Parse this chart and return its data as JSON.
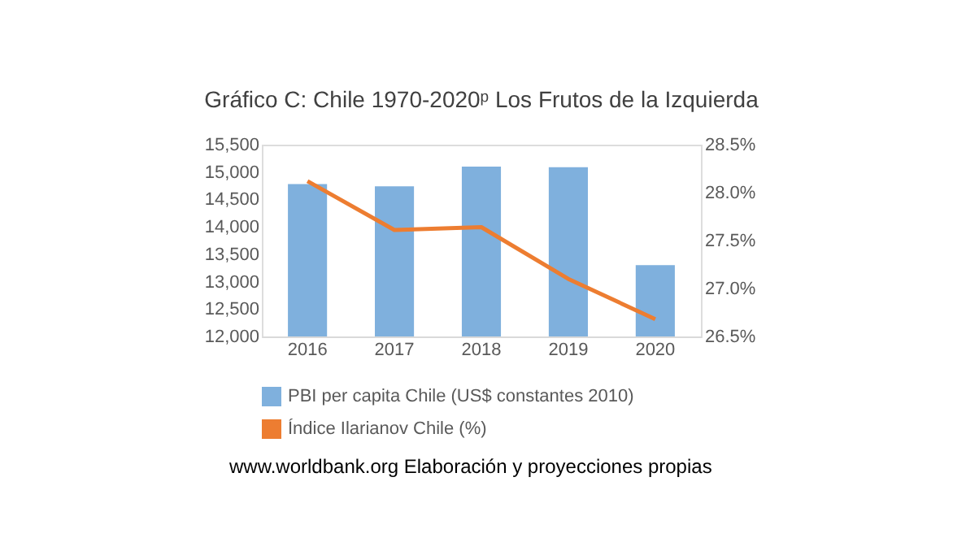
{
  "chart_data": {
    "type": "bar",
    "title": "Gráfico C: Chile 1970-2020ᵖ Los Frutos de la Izquierda",
    "categories": [
      "2016",
      "2017",
      "2018",
      "2019",
      "2020"
    ],
    "series": [
      {
        "name": "PBI per capita Chile (US$ constantes 2010)",
        "color": "#7fb0dd",
        "values": [
          14780,
          14740,
          15100,
          15090,
          13300
        ]
      },
      {
        "name": "Índice Ilarianov Chile (%)",
        "type": "line",
        "axis": "y2",
        "color": "#ed7d31",
        "values": [
          28.12,
          27.61,
          27.64,
          27.1,
          26.68
        ]
      }
    ],
    "ylim": [
      12000,
      15500
    ],
    "yticks": [
      {
        "value": 12000,
        "label": "12,000"
      },
      {
        "value": 12500,
        "label": "12,500"
      },
      {
        "value": 13000,
        "label": "13,000"
      },
      {
        "value": 13500,
        "label": "13,500"
      },
      {
        "value": 14000,
        "label": "14,000"
      },
      {
        "value": 14500,
        "label": "14,500"
      },
      {
        "value": 15000,
        "label": "15,000"
      },
      {
        "value": 15500,
        "label": "15,500"
      }
    ],
    "y2lim": [
      26.5,
      28.5
    ],
    "y2ticks": [
      {
        "value": 26.5,
        "label": "26.5%"
      },
      {
        "value": 27.0,
        "label": "27.0%"
      },
      {
        "value": 27.5,
        "label": "27.5%"
      },
      {
        "value": 28.0,
        "label": "28.0%"
      },
      {
        "value": 28.5,
        "label": "28.5%"
      }
    ],
    "grid": false,
    "legend": "bottom",
    "marker": "none",
    "line_style": "solid",
    "annotations": [
      "www.worldbank.org Elaboración y proyecciones propias"
    ]
  }
}
